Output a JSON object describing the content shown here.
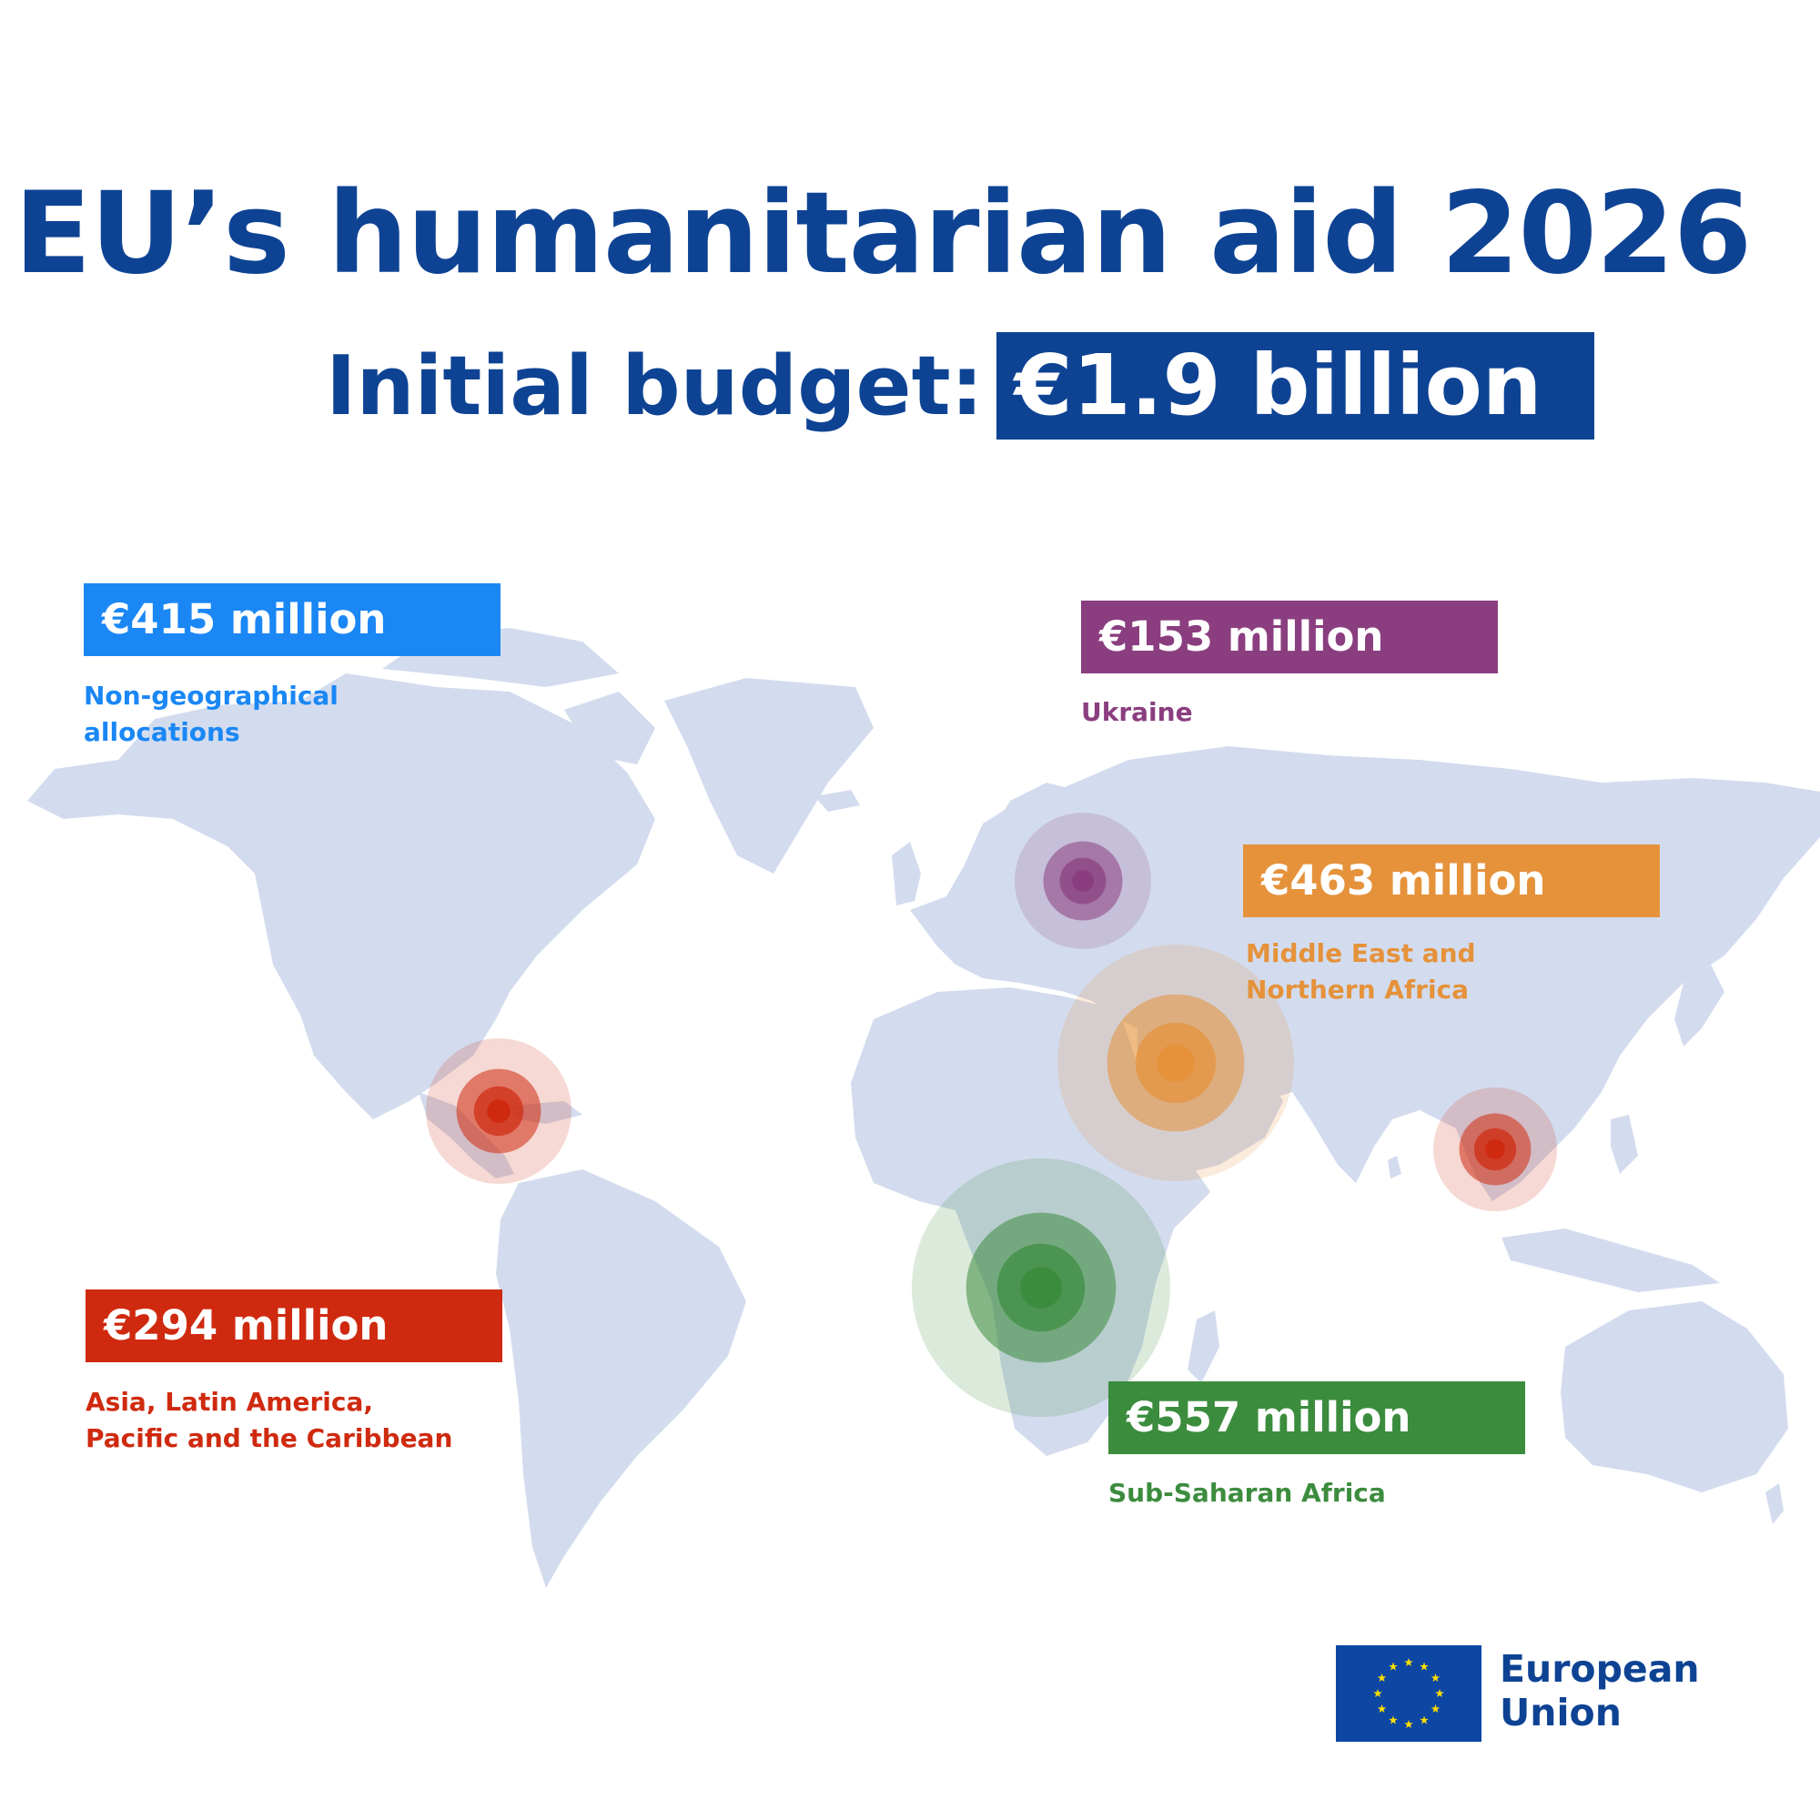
{
  "header": {
    "title": "EU’s humanitarian aid 2026",
    "budget_label": "Initial budget:",
    "budget_value": "€1.9 billion"
  },
  "allocations": [
    {
      "amount": "€415 million",
      "region": "Non-geographical allocations",
      "color": "#1a87f5"
    },
    {
      "amount": "€153 million",
      "region": "Ukraine",
      "color": "#8a3e7f"
    },
    {
      "amount": "€463 million",
      "region": "Middle East and Northern Africa",
      "color": "#e5923b"
    },
    {
      "amount": "€294 million",
      "region": "Asia, Latin America, Pacific and the Caribbean",
      "color": "#cf2a0f"
    },
    {
      "amount": "€557 million",
      "region": "Sub-Saharan Africa",
      "color": "#3c8c3e"
    }
  ],
  "map": {
    "land_color": "#d3dcee",
    "markers": [
      {
        "name": "Ukraine",
        "color": "#8a3e7f"
      },
      {
        "name": "Middle East and Northern Africa",
        "color": "#e5923b"
      },
      {
        "name": "Latin America and the Caribbean",
        "color": "#cf2a0f"
      },
      {
        "name": "Asia",
        "color": "#cf2a0f"
      },
      {
        "name": "Sub-Saharan Africa",
        "color": "#3c8c3e"
      }
    ]
  },
  "logo": {
    "icon": "eu-flag-icon",
    "flag_color": "#0e47a3",
    "star_color": "#ffde00",
    "text_line1": "European",
    "text_line2": "Union"
  }
}
